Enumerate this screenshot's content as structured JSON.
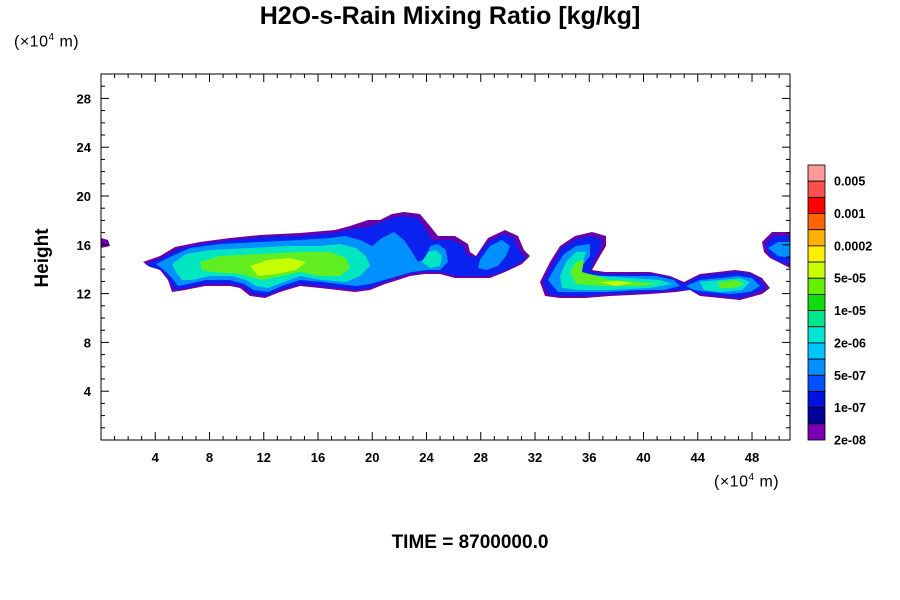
{
  "chart_data": {
    "type": "heatmap",
    "title": "H2O-s-Rain Mixing Ratio [kg/kg]",
    "ylabel": "Height",
    "xlabel": "",
    "x_unit": "(×10⁴ m)",
    "y_unit": "(×10⁴ m)",
    "xlim": [
      0,
      50.8
    ],
    "ylim": [
      0,
      30
    ],
    "x_ticks": [
      4,
      8,
      12,
      16,
      20,
      24,
      28,
      32,
      36,
      40,
      44,
      48
    ],
    "y_ticks": [
      4,
      8,
      12,
      16,
      20,
      24,
      28
    ],
    "colorbar": {
      "labels": [
        "0.005",
        "0.001",
        "0.0002",
        "5e-05",
        "1e-05",
        "2e-06",
        "5e-07",
        "1e-07",
        "2e-08"
      ],
      "colors": [
        "#ff9a9a",
        "#ff5050",
        "#ff0000",
        "#ff6400",
        "#ffb000",
        "#ffee00",
        "#c8ff00",
        "#64f000",
        "#10dc10",
        "#00e68a",
        "#00e6d2",
        "#00c4ff",
        "#0090ff",
        "#0050ff",
        "#0010e0",
        "#00009a",
        "#7a00b4"
      ]
    },
    "time_label": "TIME = 8700000.0"
  }
}
